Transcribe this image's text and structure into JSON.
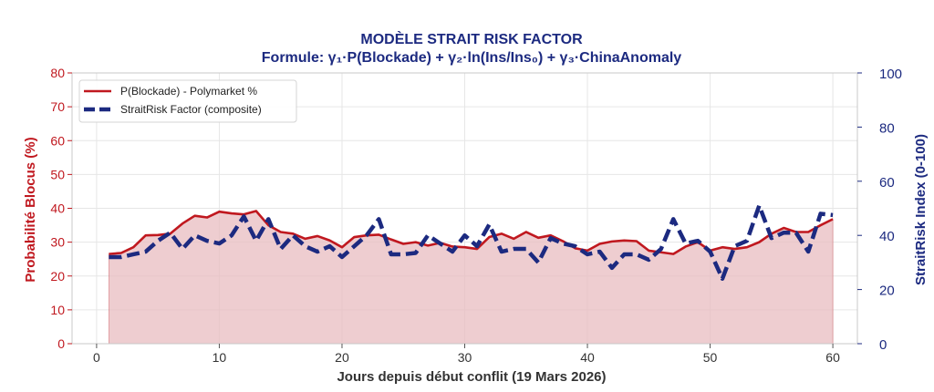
{
  "chart_data": {
    "type": "line",
    "title": "MODÈLE STRAIT RISK FACTOR",
    "subtitle": "Formule: γ₁·P(Blockade) + γ₂·ln(Ins/Ins₀) + γ₃·ChinaAnomaly",
    "xlabel": "Jours depuis début conflit (19 Mars 2026)",
    "ylabel_left": "Probabilité Blocus (%)",
    "ylabel_right": "StraitRisk Index (0-100)",
    "xlim": [
      -2,
      62
    ],
    "ylim_left": [
      0,
      80
    ],
    "ylim_right": [
      0,
      100
    ],
    "x_ticks": [
      0,
      10,
      20,
      30,
      40,
      50,
      60
    ],
    "y_ticks_left": [
      0,
      10,
      20,
      30,
      40,
      50,
      60,
      70,
      80
    ],
    "y_ticks_right": [
      0,
      20,
      40,
      60,
      80,
      100
    ],
    "grid": true,
    "legend_position": "top-left",
    "x": [
      1,
      2,
      3,
      4,
      5,
      6,
      7,
      8,
      9,
      10,
      11,
      12,
      13,
      14,
      15,
      16,
      17,
      18,
      19,
      20,
      21,
      22,
      23,
      24,
      25,
      26,
      27,
      28,
      29,
      30,
      31,
      32,
      33,
      34,
      35,
      36,
      37,
      38,
      39,
      40,
      41,
      42,
      43,
      44,
      45,
      46,
      47,
      48,
      49,
      50,
      51,
      52,
      53,
      54,
      55,
      56,
      57,
      58,
      59,
      60
    ],
    "series": [
      {
        "name": "P(Blockade) - Polymarket %",
        "axis": "left",
        "color": "#c0181f",
        "style": "solid",
        "fill": "#e8bcc0",
        "values": [
          26.5,
          26.8,
          28.5,
          32.0,
          32.1,
          32.5,
          35.5,
          37.8,
          37.3,
          39.0,
          38.5,
          38.2,
          39.2,
          35.0,
          33.0,
          32.5,
          31.0,
          31.8,
          30.5,
          28.5,
          31.5,
          32.0,
          32.2,
          30.8,
          29.5,
          30.0,
          29.0,
          29.8,
          28.7,
          28.5,
          28.0,
          31.5,
          32.5,
          31.0,
          33.0,
          31.3,
          32.0,
          30.3,
          28.2,
          27.5,
          29.5,
          30.2,
          30.5,
          30.3,
          27.5,
          27.0,
          26.5,
          28.7,
          30.0,
          27.5,
          28.5,
          28.0,
          28.5,
          30.0,
          32.5,
          34.2,
          33.0,
          33.0,
          35.0,
          36.8
        ]
      },
      {
        "name": "StraitRisk Factor (composite)",
        "axis": "right",
        "color": "#1c2a80",
        "style": "dashed",
        "values": [
          32.0,
          32.0,
          33.0,
          34.0,
          38.0,
          41.0,
          35.0,
          40.0,
          38.0,
          37.0,
          40.0,
          47.0,
          38.0,
          46.0,
          35.0,
          40.0,
          36.0,
          34.0,
          36.0,
          32.0,
          36.0,
          40.0,
          46.0,
          33.0,
          33.0,
          33.5,
          40.0,
          37.0,
          34.0,
          40.0,
          36.0,
          44.0,
          34.0,
          35.0,
          35.0,
          30.0,
          39.0,
          37.0,
          36.0,
          33.0,
          34.0,
          28.0,
          33.0,
          33.0,
          31.0,
          35.0,
          46.0,
          37.0,
          38.0,
          34.0,
          24.0,
          36.0,
          38.0,
          51.0,
          39.0,
          41.0,
          41.0,
          34.0,
          48.0,
          47.5
        ]
      }
    ]
  }
}
